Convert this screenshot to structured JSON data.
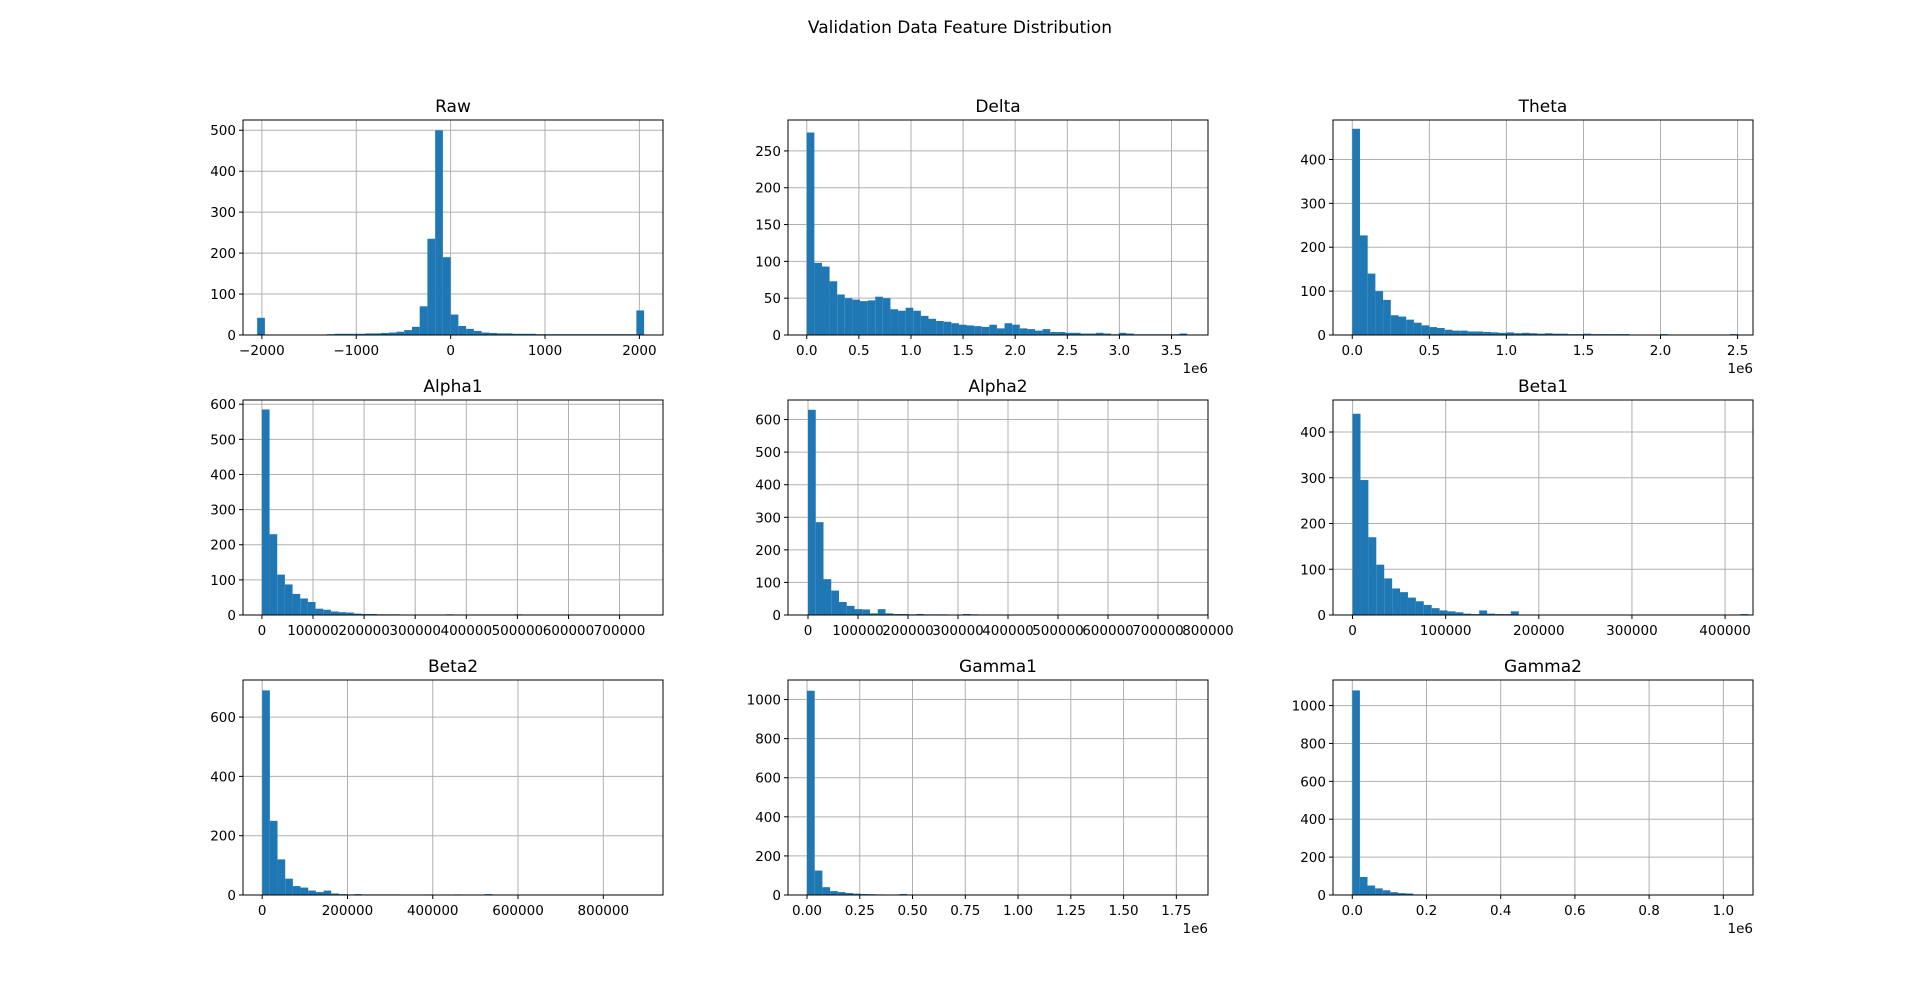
{
  "figure": {
    "suptitle": "Validation Data Feature Distribution"
  },
  "colors": {
    "bar": "#1f77b4"
  },
  "chart_data": [
    {
      "type": "bar",
      "title": "Raw",
      "xlabel": "",
      "ylabel": "",
      "grid": true,
      "xlim": [
        -2200,
        2250
      ],
      "ylim": [
        0,
        525
      ],
      "xticks": [
        -2000,
        -1000,
        0,
        1000,
        2000
      ],
      "xtick_labels": [
        "−2000",
        "−1000",
        "0",
        "1000",
        "2000"
      ],
      "yticks": [
        0,
        100,
        200,
        300,
        400,
        500
      ],
      "ytick_labels": [
        "0",
        "100",
        "200",
        "300",
        "400",
        "500"
      ],
      "x_offset_label": "",
      "bin_start": -2050,
      "bin_width": 82,
      "values": [
        42,
        1,
        1,
        1,
        1,
        1,
        1,
        1,
        1,
        2,
        3,
        3,
        3,
        3,
        4,
        4,
        5,
        6,
        8,
        12,
        20,
        70,
        235,
        500,
        190,
        50,
        22,
        15,
        10,
        6,
        5,
        4,
        4,
        3,
        3,
        3,
        2,
        2,
        2,
        2,
        2,
        2,
        2,
        2,
        2,
        2,
        2,
        2,
        2,
        60
      ]
    },
    {
      "type": "bar",
      "title": "Delta",
      "xlabel": "",
      "ylabel": "",
      "grid": true,
      "xlim": [
        -180000,
        3850000
      ],
      "ylim": [
        0,
        292
      ],
      "xticks": [
        0,
        500000,
        1000000,
        1500000,
        2000000,
        2500000,
        3000000,
        3500000
      ],
      "xtick_labels": [
        "0.0",
        "0.5",
        "1.0",
        "1.5",
        "2.0",
        "2.5",
        "3.0",
        "3.5"
      ],
      "yticks": [
        0,
        50,
        100,
        150,
        200,
        250
      ],
      "ytick_labels": [
        "0",
        "50",
        "100",
        "150",
        "200",
        "250"
      ],
      "x_offset_label": "1e6",
      "bin_start": 0,
      "bin_width": 73000,
      "values": [
        275,
        98,
        93,
        73,
        55,
        50,
        48,
        46,
        47,
        52,
        50,
        35,
        33,
        37,
        33,
        26,
        22,
        19,
        18,
        16,
        14,
        13,
        12,
        11,
        14,
        9,
        16,
        14,
        9,
        8,
        6,
        8,
        4,
        4,
        3,
        3,
        2,
        2,
        3,
        2,
        1,
        3,
        2,
        1,
        1,
        1,
        1,
        1,
        1,
        2
      ]
    },
    {
      "type": "bar",
      "title": "Theta",
      "xlabel": "",
      "ylabel": "",
      "grid": true,
      "xlim": [
        -125000,
        2600000
      ],
      "ylim": [
        0,
        490
      ],
      "xticks": [
        0,
        500000,
        1000000,
        1500000,
        2000000,
        2500000
      ],
      "xtick_labels": [
        "0.0",
        "0.5",
        "1.0",
        "1.5",
        "2.0",
        "2.5"
      ],
      "yticks": [
        0,
        100,
        200,
        300,
        400
      ],
      "ytick_labels": [
        "0",
        "100",
        "200",
        "300",
        "400"
      ],
      "x_offset_label": "1e6",
      "bin_start": 0,
      "bin_width": 50000,
      "values": [
        470,
        227,
        140,
        100,
        80,
        45,
        42,
        35,
        28,
        22,
        18,
        16,
        12,
        10,
        10,
        8,
        8,
        7,
        6,
        5,
        6,
        4,
        5,
        4,
        3,
        4,
        3,
        3,
        2,
        2,
        3,
        2,
        2,
        2,
        2,
        2,
        1,
        1,
        1,
        1,
        2,
        1,
        1,
        1,
        1,
        1,
        1,
        1,
        1,
        2
      ]
    },
    {
      "type": "bar",
      "title": "Alpha1",
      "xlabel": "",
      "ylabel": "",
      "grid": true,
      "xlim": [
        -37000,
        785000
      ],
      "ylim": [
        0,
        612
      ],
      "xticks": [
        0,
        100000,
        200000,
        300000,
        400000,
        500000,
        600000,
        700000
      ],
      "xtick_labels": [
        "0",
        "100000",
        "200000",
        "300000",
        "400000",
        "500000",
        "600000",
        "700000"
      ],
      "yticks": [
        0,
        100,
        200,
        300,
        400,
        500,
        600
      ],
      "ytick_labels": [
        "0",
        "100",
        "200",
        "300",
        "400",
        "500",
        "600"
      ],
      "x_offset_label": "",
      "bin_start": 0,
      "bin_width": 15000,
      "values": [
        585,
        230,
        115,
        87,
        60,
        47,
        37,
        18,
        15,
        10,
        8,
        7,
        4,
        3,
        3,
        2,
        2,
        2,
        1,
        1,
        1,
        1,
        1,
        1,
        2,
        1,
        1,
        1,
        1,
        1,
        1,
        1,
        1,
        2,
        1,
        1,
        1,
        1,
        1,
        1,
        1,
        1,
        1,
        1,
        1,
        1,
        1,
        1,
        1,
        1
      ]
    },
    {
      "type": "bar",
      "title": "Alpha2",
      "xlabel": "",
      "ylabel": "",
      "grid": true,
      "xlim": [
        -40000,
        800000
      ],
      "ylim": [
        0,
        660
      ],
      "xticks": [
        0,
        100000,
        200000,
        300000,
        400000,
        500000,
        600000,
        700000,
        800000
      ],
      "xtick_labels": [
        "0",
        "100000",
        "200000",
        "300000",
        "400000",
        "500000",
        "600000",
        "700000",
        "800000"
      ],
      "yticks": [
        0,
        100,
        200,
        300,
        400,
        500,
        600
      ],
      "ytick_labels": [
        "0",
        "100",
        "200",
        "300",
        "400",
        "500",
        "600"
      ],
      "x_offset_label": "",
      "bin_start": 0,
      "bin_width": 15500,
      "values": [
        630,
        285,
        110,
        75,
        40,
        28,
        18,
        17,
        5,
        18,
        5,
        3,
        3,
        2,
        3,
        2,
        2,
        2,
        1,
        1,
        3,
        2,
        1,
        1,
        1,
        1,
        1,
        1,
        1,
        1,
        1,
        1,
        1,
        1,
        1,
        1,
        1,
        1,
        1,
        1,
        1,
        1,
        1,
        1,
        1,
        1,
        1,
        1,
        1,
        1
      ]
    },
    {
      "type": "bar",
      "title": "Beta1",
      "xlabel": "",
      "ylabel": "",
      "grid": true,
      "xlim": [
        -21000,
        430000
      ],
      "ylim": [
        0,
        470
      ],
      "xticks": [
        0,
        100000,
        200000,
        300000,
        400000
      ],
      "xtick_labels": [
        "0",
        "100000",
        "200000",
        "300000",
        "400000"
      ],
      "yticks": [
        0,
        100,
        200,
        300,
        400
      ],
      "ytick_labels": [
        "0",
        "100",
        "200",
        "300",
        "400"
      ],
      "x_offset_label": "",
      "bin_start": 0,
      "bin_width": 8500,
      "values": [
        440,
        295,
        170,
        110,
        80,
        58,
        50,
        38,
        30,
        22,
        15,
        10,
        8,
        6,
        3,
        2,
        10,
        3,
        2,
        2,
        8,
        1,
        1,
        1,
        1,
        1,
        1,
        1,
        1,
        1,
        1,
        1,
        1,
        1,
        1,
        1,
        1,
        1,
        1,
        1,
        1,
        1,
        1,
        1,
        1,
        1,
        1,
        1,
        1,
        2
      ]
    },
    {
      "type": "bar",
      "title": "Beta2",
      "xlabel": "",
      "ylabel": "",
      "grid": true,
      "xlim": [
        -45000,
        940000
      ],
      "ylim": [
        0,
        725
      ],
      "xticks": [
        0,
        200000,
        400000,
        600000,
        800000
      ],
      "xtick_labels": [
        "0",
        "200000",
        "400000",
        "600000",
        "800000"
      ],
      "yticks": [
        0,
        200,
        400,
        600
      ],
      "ytick_labels": [
        "0",
        "200",
        "400",
        "600"
      ],
      "x_offset_label": "",
      "bin_start": 0,
      "bin_width": 18000,
      "values": [
        690,
        250,
        120,
        55,
        30,
        25,
        15,
        10,
        15,
        5,
        3,
        2,
        3,
        2,
        2,
        2,
        2,
        2,
        1,
        1,
        1,
        2,
        1,
        1,
        1,
        2,
        1,
        1,
        1,
        3,
        1,
        1,
        1,
        1,
        1,
        1,
        1,
        1,
        1,
        1,
        1,
        1,
        1,
        1,
        1,
        1,
        1,
        1,
        1,
        1
      ]
    },
    {
      "type": "bar",
      "title": "Gamma1",
      "xlabel": "",
      "ylabel": "",
      "grid": true,
      "xlim": [
        -90000,
        1900000
      ],
      "ylim": [
        0,
        1100
      ],
      "xticks": [
        0,
        250000,
        500000,
        750000,
        1000000,
        1250000,
        1500000,
        1750000
      ],
      "xtick_labels": [
        "0.00",
        "0.25",
        "0.50",
        "0.75",
        "1.00",
        "1.25",
        "1.50",
        "1.75"
      ],
      "yticks": [
        0,
        200,
        400,
        600,
        800,
        1000
      ],
      "ytick_labels": [
        "0",
        "200",
        "400",
        "600",
        "800",
        "1000"
      ],
      "x_offset_label": "1e6",
      "bin_start": 0,
      "bin_width": 36500,
      "values": [
        1045,
        125,
        40,
        20,
        15,
        10,
        7,
        5,
        4,
        3,
        2,
        2,
        5,
        1,
        1,
        1,
        1,
        1,
        1,
        1,
        1,
        1,
        1,
        1,
        1,
        1,
        1,
        1,
        1,
        1,
        1,
        1,
        1,
        1,
        1,
        1,
        1,
        1,
        1,
        1,
        1,
        1,
        1,
        1,
        1,
        1,
        1,
        1,
        1,
        1
      ]
    },
    {
      "type": "bar",
      "title": "Gamma2",
      "xlabel": "",
      "ylabel": "",
      "grid": true,
      "xlim": [
        -52000,
        1080000
      ],
      "ylim": [
        0,
        1135
      ],
      "xticks": [
        0,
        200000,
        400000,
        600000,
        800000,
        1000000
      ],
      "xtick_labels": [
        "0.0",
        "0.2",
        "0.4",
        "0.6",
        "0.8",
        "1.0"
      ],
      "yticks": [
        0,
        200,
        400,
        600,
        800,
        1000
      ],
      "ytick_labels": [
        "0",
        "200",
        "400",
        "600",
        "800",
        "1000"
      ],
      "x_offset_label": "1e6",
      "bin_start": 0,
      "bin_width": 20500,
      "values": [
        1080,
        95,
        50,
        35,
        25,
        15,
        10,
        8,
        3,
        2,
        2,
        1,
        1,
        1,
        1,
        1,
        1,
        1,
        1,
        1,
        1,
        1,
        1,
        1,
        1,
        1,
        1,
        1,
        1,
        1,
        1,
        1,
        1,
        1,
        1,
        1,
        1,
        1,
        1,
        1,
        1,
        1,
        1,
        1,
        1,
        1,
        1,
        1,
        1,
        1
      ]
    }
  ]
}
